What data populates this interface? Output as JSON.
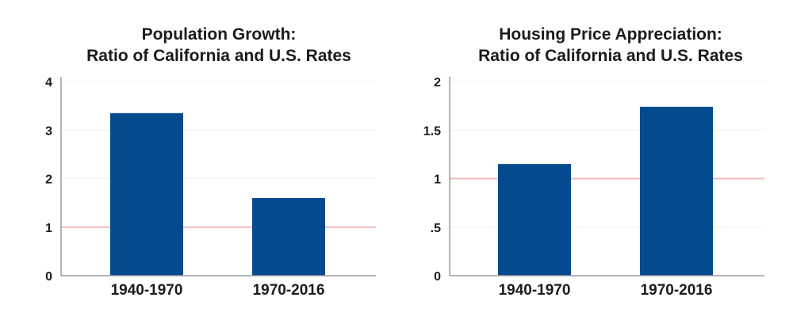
{
  "colors": {
    "bar": "#034a8e",
    "reference_line": "#f2b8b8",
    "grid": "#f0f0f0",
    "axis": "#9a9a9a"
  },
  "chart_data": [
    {
      "type": "bar",
      "title_lines": [
        "Population Growth:",
        "Ratio of California and U.S. Rates"
      ],
      "categories": [
        "1940-1970",
        "1970-2016"
      ],
      "values": [
        3.35,
        1.6
      ],
      "ylim": [
        0,
        4
      ],
      "yticks": [
        0,
        1,
        2,
        3,
        4
      ],
      "ytick_labels": [
        "0",
        "1",
        "2",
        "3",
        "4"
      ],
      "reference_line": 1,
      "grid": true
    },
    {
      "type": "bar",
      "title_lines": [
        "Housing Price Appreciation:",
        "Ratio of California and U.S. Rates"
      ],
      "categories": [
        "1940-1970",
        "1970-2016"
      ],
      "values": [
        1.15,
        1.74
      ],
      "ylim": [
        0,
        2
      ],
      "yticks": [
        0,
        0.5,
        1,
        1.5,
        2
      ],
      "ytick_labels": [
        "0",
        ".5",
        "1",
        "1.5",
        "2"
      ],
      "reference_line": 1,
      "grid": true
    }
  ]
}
